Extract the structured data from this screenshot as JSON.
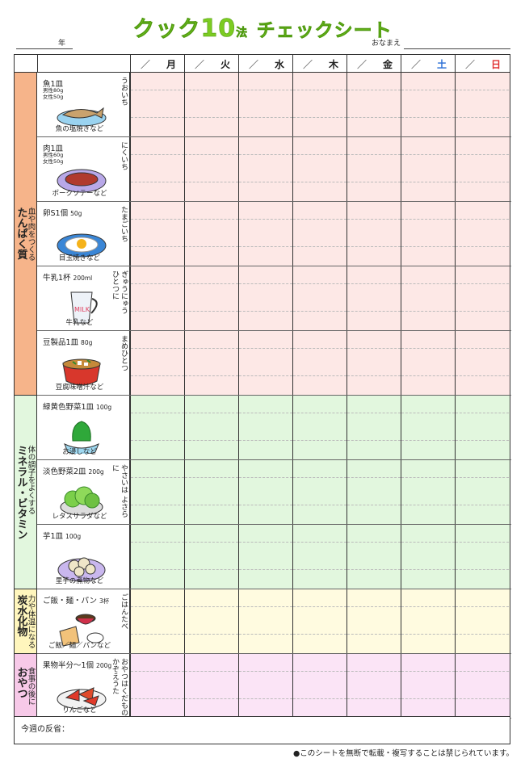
{
  "header": {
    "title_a": "クック",
    "title_b": "10",
    "title_c": "法",
    "title_d": "チェックシート",
    "year_label": "年",
    "name_label": "おなまえ"
  },
  "days": [
    {
      "slash": "／",
      "label": "月",
      "color": "#222222"
    },
    {
      "slash": "／",
      "label": "火",
      "color": "#222222"
    },
    {
      "slash": "／",
      "label": "水",
      "color": "#222222"
    },
    {
      "slash": "／",
      "label": "木",
      "color": "#222222"
    },
    {
      "slash": "／",
      "label": "金",
      "color": "#222222"
    },
    {
      "slash": "／",
      "label": "土",
      "color": "#2b6fd6"
    },
    {
      "slash": "／",
      "label": "日",
      "color": "#e03030"
    }
  ],
  "sections": [
    {
      "small": "血や肉をつくる",
      "big": "たんぱく質",
      "bg": "#fde8e6",
      "cat_bg": "#f6b48a"
    },
    {
      "small": "体の調子をよくする",
      "big": "ミネラル・ビタミン",
      "bg": "#e2f7de",
      "cat_bg": "#e2f7de"
    },
    {
      "small": "力や体温になる",
      "big": "炭水化物",
      "bg": "#fffbe0",
      "cat_bg": "#fff6bd"
    },
    {
      "small": "食事の後に",
      "big": "おやつ",
      "bg": "#fbe4f6",
      "cat_bg": "#f7c9e8"
    }
  ],
  "items": [
    {
      "name": "魚1皿",
      "amount": "",
      "sub1": "男性80g",
      "sub2": "女性50g",
      "caption": "魚の塩焼きなど",
      "side": "うおいち",
      "icon": "fish-dish-icon"
    },
    {
      "name": "肉1皿",
      "amount": "",
      "sub1": "男性60g",
      "sub2": "女性50g",
      "caption": "ポークソテーなど",
      "side": "にくいち",
      "icon": "meat-dish-icon"
    },
    {
      "name": "卵S1個",
      "amount": "50g",
      "sub1": "",
      "sub2": "",
      "caption": "目玉焼きなど",
      "side": "たまごいち",
      "icon": "egg-dish-icon"
    },
    {
      "name": "牛乳1杯",
      "amount": "200ml",
      "sub1": "",
      "sub2": "",
      "caption": "牛乳など",
      "side": "ぎゅうにゅう\nひとつに",
      "icon": "milk-cup-icon"
    },
    {
      "name": "豆製品1皿",
      "amount": "80g",
      "sub1": "",
      "sub2": "",
      "caption": "豆腐味噌汁など",
      "side": "まめひとつ",
      "icon": "miso-soup-icon"
    },
    {
      "name": "緑黄色野菜1皿",
      "amount": "100g",
      "sub1": "",
      "sub2": "",
      "caption": "お浸しなど",
      "side": "",
      "icon": "green-veg-icon"
    },
    {
      "name": "淡色野菜2皿",
      "amount": "200g",
      "sub1": "",
      "sub2": "",
      "caption": "レタスサラダなど",
      "side": "やさいは よさらに",
      "icon": "salad-icon"
    },
    {
      "name": "芋1皿",
      "amount": "100g",
      "sub1": "",
      "sub2": "",
      "caption": "里芋の煮物など",
      "side": "",
      "icon": "taro-dish-icon"
    },
    {
      "name": "ご飯・麺・パン",
      "amount": "3杯",
      "sub1": "",
      "sub2": "",
      "caption": "ご飯／麺／パンなど",
      "side": "ごはんたべ",
      "icon": "staples-icon"
    },
    {
      "name": "果物半分～1個",
      "amount": "200g",
      "sub1": "",
      "sub2": "",
      "caption": "りんごなど",
      "side": "おやつはくだもの\nかぞえうた",
      "icon": "apple-slices-icon"
    }
  ],
  "reflection_label": "今週の反省：",
  "footer": "●このシートを無断で転載・複写することは禁じられています。"
}
